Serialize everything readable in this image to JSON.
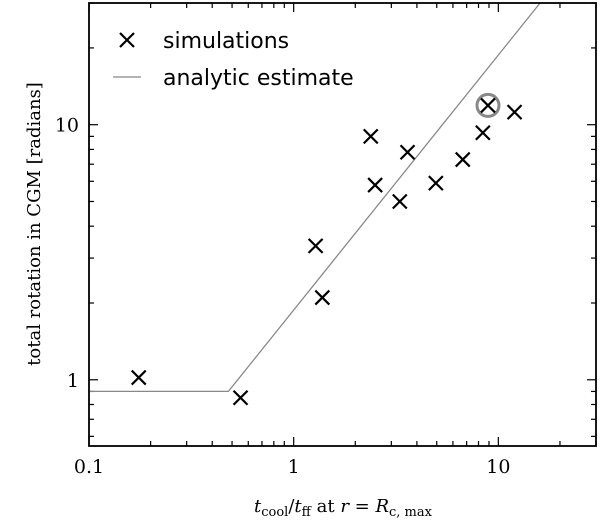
{
  "chart_data": {
    "type": "scatter",
    "xscale": "log",
    "yscale": "log",
    "xlim": [
      0.1,
      30
    ],
    "ylim": [
      0.55,
      30
    ],
    "xticks": [
      {
        "value": 0.1,
        "label": "0.1"
      },
      {
        "value": 1,
        "label": "1"
      },
      {
        "value": 10,
        "label": "10"
      }
    ],
    "yticks": [
      {
        "value": 1,
        "label": "1"
      },
      {
        "value": 10,
        "label": "10"
      }
    ],
    "xlabel": {
      "t": "t",
      "cool": "cool",
      "slash": "/",
      "t2": "t",
      "ff": "ff",
      "at": " at ",
      "r": "r",
      "eq": " = ",
      "R": "R",
      "sub": "c, max"
    },
    "ylabel": "total rotation in CGM [radians]",
    "legend": {
      "placement": "top-left",
      "entries": [
        {
          "label": "simulations",
          "marker": "x"
        },
        {
          "label": "analytic estimate",
          "marker": "line"
        }
      ]
    },
    "series": [
      {
        "name": "simulations",
        "marker": "x",
        "color": "#000000",
        "points": [
          {
            "x": 0.175,
            "y": 1.02
          },
          {
            "x": 0.55,
            "y": 0.85
          },
          {
            "x": 1.28,
            "y": 3.35
          },
          {
            "x": 1.38,
            "y": 2.1
          },
          {
            "x": 2.38,
            "y": 9.0
          },
          {
            "x": 2.5,
            "y": 5.8
          },
          {
            "x": 3.3,
            "y": 5.0
          },
          {
            "x": 3.6,
            "y": 7.8
          },
          {
            "x": 4.95,
            "y": 5.9
          },
          {
            "x": 6.7,
            "y": 7.3
          },
          {
            "x": 8.4,
            "y": 9.3
          },
          {
            "x": 8.9,
            "y": 11.9
          },
          {
            "x": 12.0,
            "y": 11.2
          }
        ]
      },
      {
        "name": "analytic estimate",
        "type": "line",
        "color": "#888888",
        "points": [
          {
            "x": 0.1,
            "y": 0.9
          },
          {
            "x": 0.48,
            "y": 0.9
          },
          {
            "x": 16,
            "y": 30
          }
        ]
      }
    ],
    "highlight": {
      "x": 8.9,
      "y": 11.9,
      "shape": "circle",
      "color": "#888888"
    }
  }
}
